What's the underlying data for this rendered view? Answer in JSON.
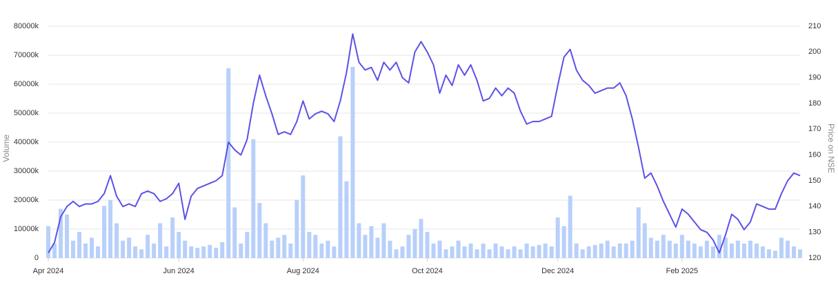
{
  "chart_data": {
    "type": "bar-line",
    "y_label": "Volume",
    "y2_label": "Price on NSE",
    "categories": [
      "Apr 2024",
      null,
      null,
      null,
      null,
      null,
      null,
      null,
      null,
      null,
      null,
      null,
      null,
      null,
      null,
      null,
      null,
      null,
      null,
      null,
      null,
      "Jun 2024",
      null,
      null,
      null,
      null,
      null,
      null,
      null,
      null,
      null,
      null,
      null,
      null,
      null,
      null,
      null,
      null,
      null,
      null,
      null,
      "Aug 2024",
      null,
      null,
      null,
      null,
      null,
      null,
      null,
      null,
      null,
      null,
      null,
      null,
      null,
      null,
      null,
      null,
      null,
      null,
      null,
      "Oct 2024",
      null,
      null,
      null,
      null,
      null,
      null,
      null,
      null,
      null,
      null,
      null,
      null,
      null,
      null,
      null,
      null,
      null,
      null,
      null,
      null,
      "Dec 2024",
      null,
      null,
      null,
      null,
      null,
      null,
      null,
      null,
      null,
      null,
      null,
      null,
      null,
      null,
      null,
      null,
      null,
      null,
      null,
      "Feb 2025",
      null,
      null,
      null,
      null,
      null,
      null,
      null,
      null,
      null,
      null,
      null,
      null,
      null,
      null,
      null,
      null,
      null,
      null,
      null
    ],
    "series": [
      {
        "name": "Volume",
        "type": "bar",
        "axis": "y",
        "color": "#b8d0fa",
        "values": [
          11000,
          5000,
          17000,
          15000,
          6000,
          9000,
          5000,
          7000,
          4000,
          18000,
          20000,
          12000,
          6000,
          7000,
          4000,
          3000,
          8000,
          5000,
          12000,
          4000,
          14000,
          9000,
          6000,
          4000,
          3500,
          4000,
          4500,
          3500,
          5500,
          65500,
          17500,
          5000,
          9000,
          41000,
          19000,
          12000,
          6000,
          7000,
          8000,
          5000,
          20000,
          28500,
          9000,
          8000,
          5000,
          6000,
          4000,
          42000,
          26500,
          66000,
          12000,
          8000,
          11000,
          7000,
          12000,
          6000,
          3000,
          4000,
          8000,
          10000,
          13500,
          9000,
          5000,
          6000,
          3000,
          4000,
          6000,
          4000,
          5000,
          3000,
          5000,
          3000,
          5000,
          4000,
          3000,
          4000,
          3000,
          5000,
          4000,
          4500,
          5000,
          4000,
          14000,
          11000,
          21500,
          5000,
          3000,
          4000,
          4500,
          5000,
          6000,
          4000,
          5000,
          5000,
          6000,
          17500,
          12000,
          7000,
          6000,
          8000,
          6000,
          5000,
          8000,
          6000,
          5000,
          4000,
          6000,
          4000,
          8000,
          7000,
          5000,
          6000,
          5000,
          6000,
          5000,
          4000,
          3000,
          2500,
          7000,
          6000,
          4000,
          3000
        ]
      },
      {
        "name": "Price",
        "type": "line",
        "axis": "y2",
        "color": "#5b50e8",
        "values": [
          122,
          126,
          136,
          140,
          142,
          140,
          141,
          141,
          142,
          145,
          152,
          144,
          140,
          141,
          140,
          145,
          146,
          145,
          142,
          143,
          145,
          149,
          135,
          144,
          147,
          148,
          149,
          150,
          152,
          165,
          162,
          160,
          166,
          180,
          191,
          183,
          176,
          168,
          169,
          168,
          173,
          181,
          174,
          176,
          177,
          176,
          173,
          181,
          192,
          207,
          196,
          193,
          194,
          189,
          196,
          193,
          196,
          190,
          188,
          200,
          204,
          200,
          195,
          184,
          191,
          187,
          195,
          191,
          195,
          189,
          181,
          182,
          186,
          183,
          186,
          184,
          177,
          172,
          173,
          173,
          174,
          175,
          187,
          198,
          201,
          193,
          189,
          187,
          184,
          185,
          186,
          186,
          188,
          183,
          174,
          163,
          151,
          153,
          148,
          142,
          137,
          132,
          139,
          137,
          134,
          131,
          130,
          127,
          122,
          129,
          137,
          135,
          131,
          134,
          141,
          140,
          139,
          139,
          145,
          150,
          153,
          152
        ]
      }
    ],
    "ylim": [
      0,
      80000
    ],
    "yticks": [
      0,
      {
        "value": 10000,
        "label": "10000k"
      },
      {
        "value": 20000,
        "label": "20000k"
      },
      {
        "value": 30000,
        "label": "30000k"
      },
      {
        "value": 40000,
        "label": "40000k"
      },
      {
        "value": 50000,
        "label": "50000k"
      },
      {
        "value": 60000,
        "label": "60000k"
      },
      {
        "value": 70000,
        "label": "70000k"
      },
      {
        "value": 80000,
        "label": "80000k"
      }
    ],
    "y2lim": [
      120,
      210
    ],
    "y2ticks": [
      120,
      130,
      140,
      150,
      160,
      170,
      180,
      190,
      200,
      210
    ],
    "grid": true
  }
}
